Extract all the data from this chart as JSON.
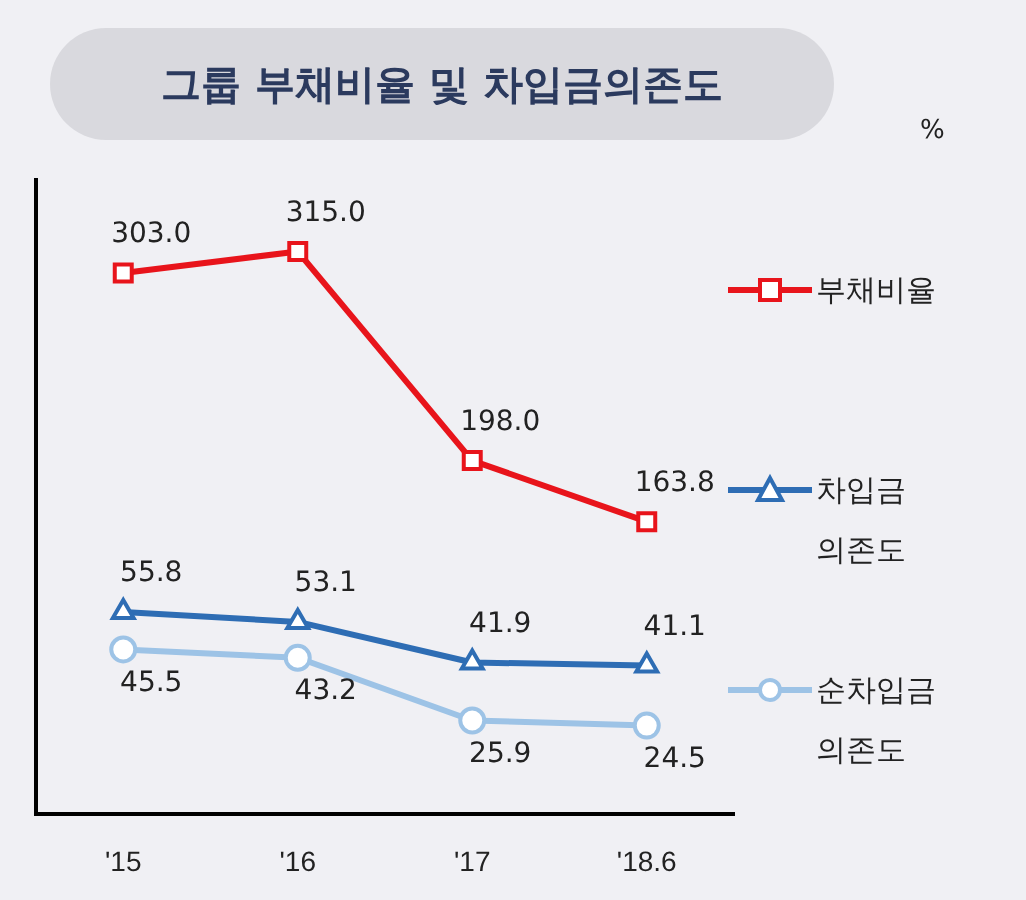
{
  "chart_data": {
    "type": "line",
    "title": "그룹 부채비율 및 차입금의존도",
    "annotations": [
      "%"
    ],
    "categories": [
      "'15",
      "'16",
      "'17",
      "'18.6"
    ],
    "series": [
      {
        "name": "부채비율",
        "color": "#e8141b",
        "values": [
          303.0,
          315.0,
          198.0,
          163.8
        ],
        "value_labels": [
          "303.0",
          "315.0",
          "198.0",
          "163.8"
        ],
        "marker": "square"
      },
      {
        "name": "차입금\n의존도",
        "color": "#2e6db4",
        "values": [
          55.8,
          53.1,
          41.9,
          41.1
        ],
        "value_labels": [
          "55.8",
          "53.1",
          "41.9",
          "41.1"
        ],
        "marker": "triangle",
        "axis": "y2"
      },
      {
        "name": "순차입금\n의존도",
        "color": "#9dc3e6",
        "values": [
          45.5,
          43.2,
          25.9,
          24.5
        ],
        "value_labels": [
          "45.5",
          "43.2",
          "25.9",
          "24.5"
        ],
        "marker": "circle",
        "axis": "y2"
      }
    ],
    "ylim": [
      0,
      355
    ],
    "y2lim": [
      0,
      175
    ],
    "tick_labels": "x",
    "legend": "right",
    "grid": false,
    "line_style": "solid"
  }
}
